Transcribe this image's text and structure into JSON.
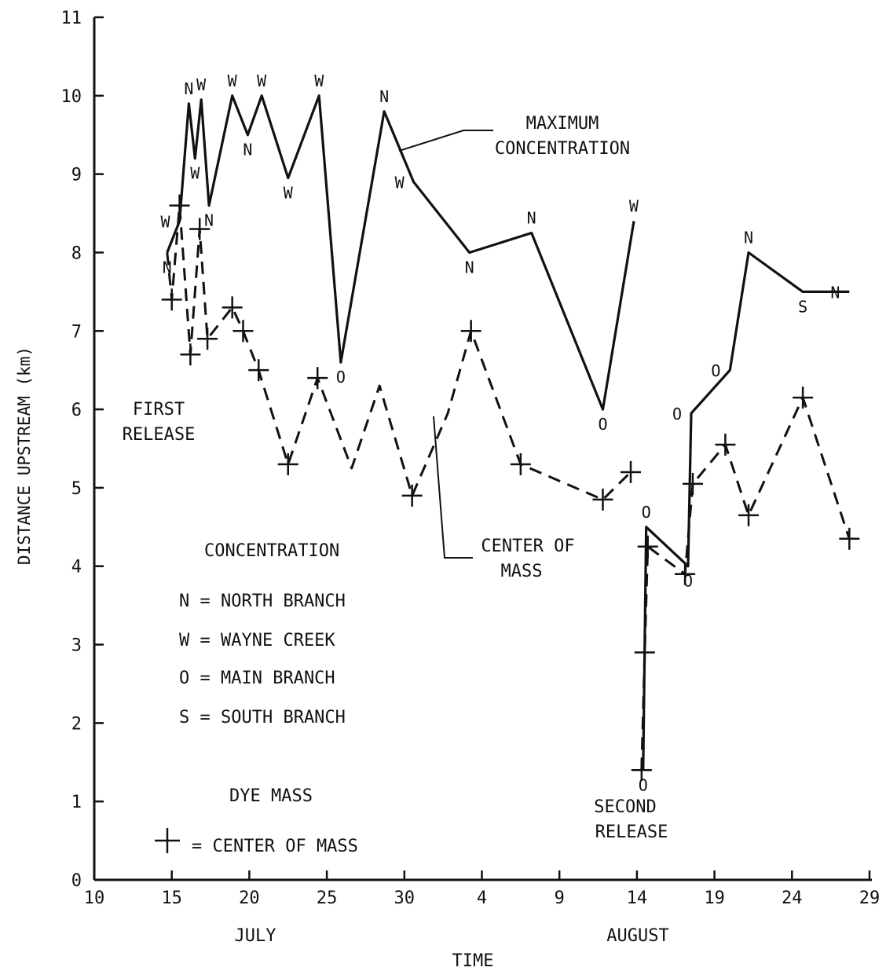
{
  "chart_data": {
    "type": "line",
    "ylabel": "DISTANCE UPSTREAM (km)",
    "xlabel": "TIME",
    "month_labels": [
      "JULY",
      "AUGUST"
    ],
    "x_tick_labels": [
      "10",
      "15",
      "20",
      "25",
      "30",
      "4",
      "9",
      "14",
      "19",
      "24",
      "29"
    ],
    "x_tick_dates": [
      "Jul 10",
      "Jul 15",
      "Jul 20",
      "Jul 25",
      "Jul 30",
      "Aug 4",
      "Aug 9",
      "Aug 14",
      "Aug 19",
      "Aug 24",
      "Aug 29"
    ],
    "y_tick_labels": [
      "0",
      "1",
      "2",
      "3",
      "4",
      "5",
      "6",
      "7",
      "8",
      "9",
      "10",
      "11"
    ],
    "ylim": [
      0,
      11
    ],
    "grid": false,
    "annotations": {
      "max_label_line1": "MAXIMUM",
      "max_label_line2": "CONCENTRATION",
      "com_label_line1": "CENTER OF",
      "com_label_line2": "MASS",
      "first_release_line1": "FIRST",
      "first_release_line2": "RELEASE",
      "second_release_line1": "SECOND",
      "second_release_line2": "RELEASE"
    },
    "legend": {
      "heading": "CONCENTRATION",
      "items": [
        {
          "code": "N",
          "text": "N = NORTH BRANCH"
        },
        {
          "code": "W",
          "text": "W = WAYNE CREEK"
        },
        {
          "code": "O",
          "text": "O = MAIN BRANCH"
        },
        {
          "code": "S",
          "text": "S = SOUTH BRANCH"
        }
      ],
      "dye_heading": "DYE MASS",
      "dye_item": "= CENTER OF MASS"
    },
    "series": [
      {
        "name": "MAXIMUM CONCENTRATION",
        "style": "solid",
        "color": "#111111",
        "segments": [
          [
            {
              "x": "Jul 14.7",
              "y": 8.0,
              "label": "N"
            },
            {
              "x": "Jul 15.5",
              "y": 8.4,
              "label": "W"
            },
            {
              "x": "Jul 16.1",
              "y": 9.9,
              "label": "N"
            },
            {
              "x": "Jul 16.5",
              "y": 9.2,
              "label": "W"
            },
            {
              "x": "Jul 16.9",
              "y": 9.95,
              "label": "W"
            },
            {
              "x": "Jul 17.4",
              "y": 8.6,
              "label": "N"
            },
            {
              "x": "Jul 18.9",
              "y": 10.0,
              "label": "W"
            },
            {
              "x": "Jul 19.9",
              "y": 9.5,
              "label": "N"
            },
            {
              "x": "Jul 20.8",
              "y": 10.0,
              "label": "W"
            },
            {
              "x": "Jul 22.5",
              "y": 8.95,
              "label": "W"
            },
            {
              "x": "Jul 24.5",
              "y": 10.0,
              "label": "W"
            },
            {
              "x": "Jul 25.9",
              "y": 6.6,
              "label": "O"
            },
            {
              "x": "Jul 28.7",
              "y": 9.8,
              "label": "N"
            },
            {
              "x": "Jul 30.6",
              "y": 8.9,
              "label": "W"
            },
            {
              "x": "Aug 3.2",
              "y": 8.0,
              "label": "N"
            },
            {
              "x": "Aug 7.2",
              "y": 8.25,
              "label": "N"
            },
            {
              "x": "Aug 11.8",
              "y": 6.0,
              "label": "O"
            },
            {
              "x": "Aug 13.8",
              "y": 8.4,
              "label": "W"
            }
          ],
          [
            {
              "x": "Aug 14.4",
              "y": 1.4,
              "label": "O"
            },
            {
              "x": "Aug 14.6",
              "y": 4.5,
              "label": "O"
            },
            {
              "x": "Aug 17.3",
              "y": 4.0,
              "label": "O"
            },
            {
              "x": "Aug 17.5",
              "y": 5.95,
              "label": "O"
            },
            {
              "x": "Aug 20.0",
              "y": 6.5,
              "label": "O"
            },
            {
              "x": "Aug 21.2",
              "y": 8.0,
              "label": "N"
            },
            {
              "x": "Aug 24.7",
              "y": 7.5,
              "label": "S"
            },
            {
              "x": "Aug 27.7",
              "y": 7.5,
              "label": "N"
            }
          ]
        ]
      },
      {
        "name": "CENTER OF MASS",
        "style": "dashed",
        "color": "#111111",
        "segments": [
          [
            {
              "x": "Jul 14.7",
              "y": 8.0
            },
            {
              "x": "Jul 15.0",
              "y": 7.4,
              "marker": true
            },
            {
              "x": "Jul 15.5",
              "y": 8.6,
              "marker": true
            },
            {
              "x": "Jul 16.2",
              "y": 6.7,
              "marker": true
            },
            {
              "x": "Jul 16.8",
              "y": 8.3,
              "marker": true
            },
            {
              "x": "Jul 17.3",
              "y": 6.9,
              "marker": true
            },
            {
              "x": "Jul 18.9",
              "y": 7.3,
              "marker": true
            },
            {
              "x": "Jul 19.6",
              "y": 7.0,
              "marker": true
            },
            {
              "x": "Jul 20.6",
              "y": 6.5,
              "marker": true
            },
            {
              "x": "Jul 22.5",
              "y": 5.3,
              "marker": true
            },
            {
              "x": "Jul 24.4",
              "y": 6.4,
              "marker": true
            },
            {
              "x": "Jul 26.6",
              "y": 5.25
            },
            {
              "x": "Jul 28.4",
              "y": 6.3
            },
            {
              "x": "Jul 30.5",
              "y": 4.9,
              "marker": true
            },
            {
              "x": "Aug 1.8",
              "y": 5.95
            },
            {
              "x": "Aug 3.3",
              "y": 7.0,
              "marker": true
            },
            {
              "x": "Aug 6.5",
              "y": 5.3,
              "marker": true
            },
            {
              "x": "Aug 11.8",
              "y": 4.85,
              "marker": true
            },
            {
              "x": "Aug 13.6",
              "y": 5.2,
              "marker": true
            }
          ],
          [
            {
              "x": "Aug 14.3",
              "y": 1.4,
              "marker": true
            },
            {
              "x": "Aug 14.5",
              "y": 2.9,
              "marker": true
            },
            {
              "x": "Aug 14.7",
              "y": 4.25,
              "marker": true
            },
            {
              "x": "Aug 17.1",
              "y": 3.9,
              "marker": true
            },
            {
              "x": "Aug 17.6",
              "y": 5.05,
              "marker": true
            },
            {
              "x": "Aug 19.7",
              "y": 5.55,
              "marker": true
            },
            {
              "x": "Aug 21.2",
              "y": 4.65,
              "marker": true
            },
            {
              "x": "Aug 24.7",
              "y": 6.15,
              "marker": true
            },
            {
              "x": "Aug 27.7",
              "y": 4.35,
              "marker": true
            }
          ]
        ]
      }
    ]
  }
}
